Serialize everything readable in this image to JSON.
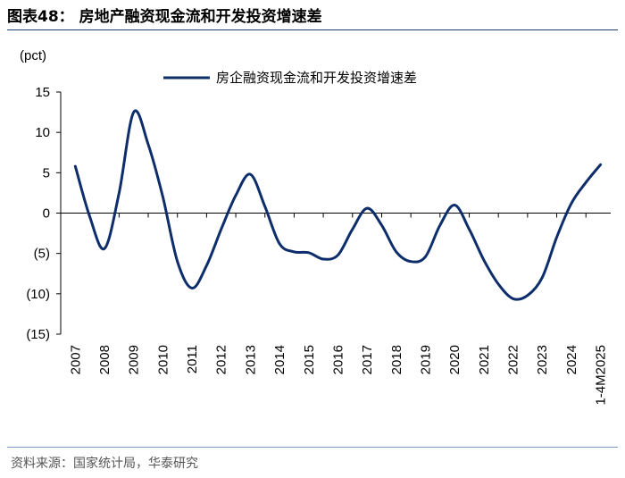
{
  "figure": {
    "title": "图表48： 房地产融资现金流和开发投资增速差",
    "source": "资料来源：国家统计局，华泰研究"
  },
  "colors": {
    "line": "#0d2d6b",
    "axis": "#000000"
  },
  "chart_data": {
    "type": "line",
    "title": "",
    "ylabel": "(pct)",
    "xlabel": "",
    "ylim": [
      -15,
      15
    ],
    "yticks": [
      15,
      10,
      5,
      0,
      -5,
      -10,
      -15
    ],
    "ytick_labels": [
      "15",
      "10",
      "5",
      "0",
      "(5)",
      "(10)",
      "(15)"
    ],
    "categories": [
      "2007",
      "2008",
      "2009",
      "2010",
      "2011",
      "2012",
      "2013",
      "2014",
      "2015",
      "2016",
      "2017",
      "2018",
      "2019",
      "2020",
      "2021",
      "2022",
      "2023",
      "2024",
      "1-4M2025"
    ],
    "legend_position": "top-center",
    "grid": false,
    "series": [
      {
        "name": "房企融资现金流和开发投资增速差",
        "x": [
          2007,
          2007.5,
          2008,
          2008.5,
          2009,
          2009.5,
          2010,
          2010.5,
          2011,
          2011.5,
          2012,
          2012.5,
          2013,
          2013.5,
          2014,
          2014.5,
          2015,
          2015.5,
          2016,
          2016.5,
          2017,
          2017.5,
          2018,
          2018.5,
          2019,
          2019.5,
          2020,
          2020.5,
          2021,
          2021.5,
          2022,
          2022.5,
          2023,
          2023.5,
          2024,
          2024.5,
          2025
        ],
        "values": [
          5.8,
          -0.5,
          -4.4,
          2.5,
          12.5,
          8.5,
          2.0,
          -6.0,
          -9.3,
          -6.5,
          -2.0,
          2.2,
          4.8,
          0.8,
          -3.8,
          -4.8,
          -4.9,
          -5.7,
          -5.2,
          -2.0,
          0.6,
          -1.5,
          -4.8,
          -6.0,
          -5.4,
          -1.5,
          1.0,
          -2.0,
          -5.8,
          -8.8,
          -10.6,
          -10.2,
          -8.0,
          -3.0,
          1.2,
          3.8,
          6.0
        ]
      }
    ]
  }
}
